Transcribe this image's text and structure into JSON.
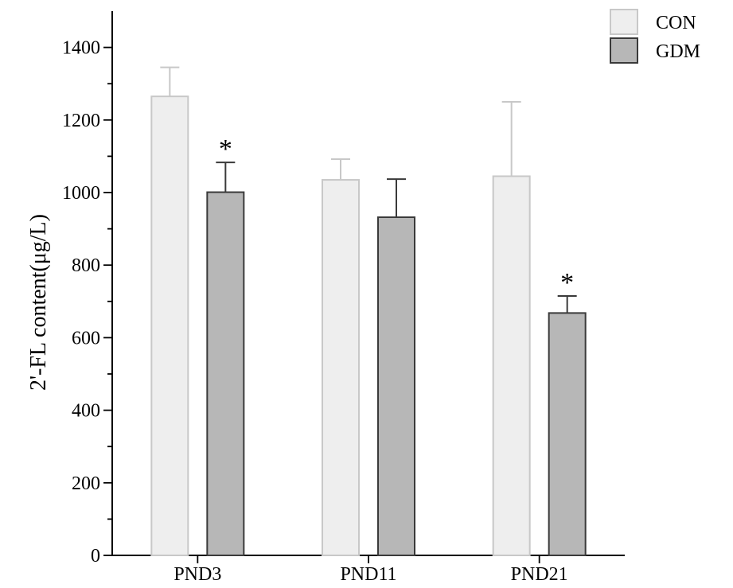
{
  "chart_data": {
    "type": "bar",
    "categories": [
      "PND3",
      "PND11",
      "PND21"
    ],
    "series": [
      {
        "name": "CON",
        "values": [
          1265,
          1035,
          1045
        ],
        "errors": [
          80,
          57,
          205
        ],
        "fill": "#eeeeee",
        "stroke": "#c8c8c8",
        "significance": [
          "",
          "",
          ""
        ]
      },
      {
        "name": "GDM",
        "values": [
          1001,
          932,
          668
        ],
        "errors": [
          82,
          105,
          47
        ],
        "fill": "#b7b7b7",
        "stroke": "#3a3a3a",
        "significance": [
          "*",
          "",
          "*"
        ]
      }
    ],
    "title": "",
    "xlabel": "",
    "ylabel": "2'-FL content(μg/L)",
    "ylim": [
      0,
      1500
    ],
    "yticks": [
      0,
      200,
      400,
      600,
      800,
      1000,
      1200,
      1400
    ],
    "grid": false,
    "legend": "top-right"
  }
}
